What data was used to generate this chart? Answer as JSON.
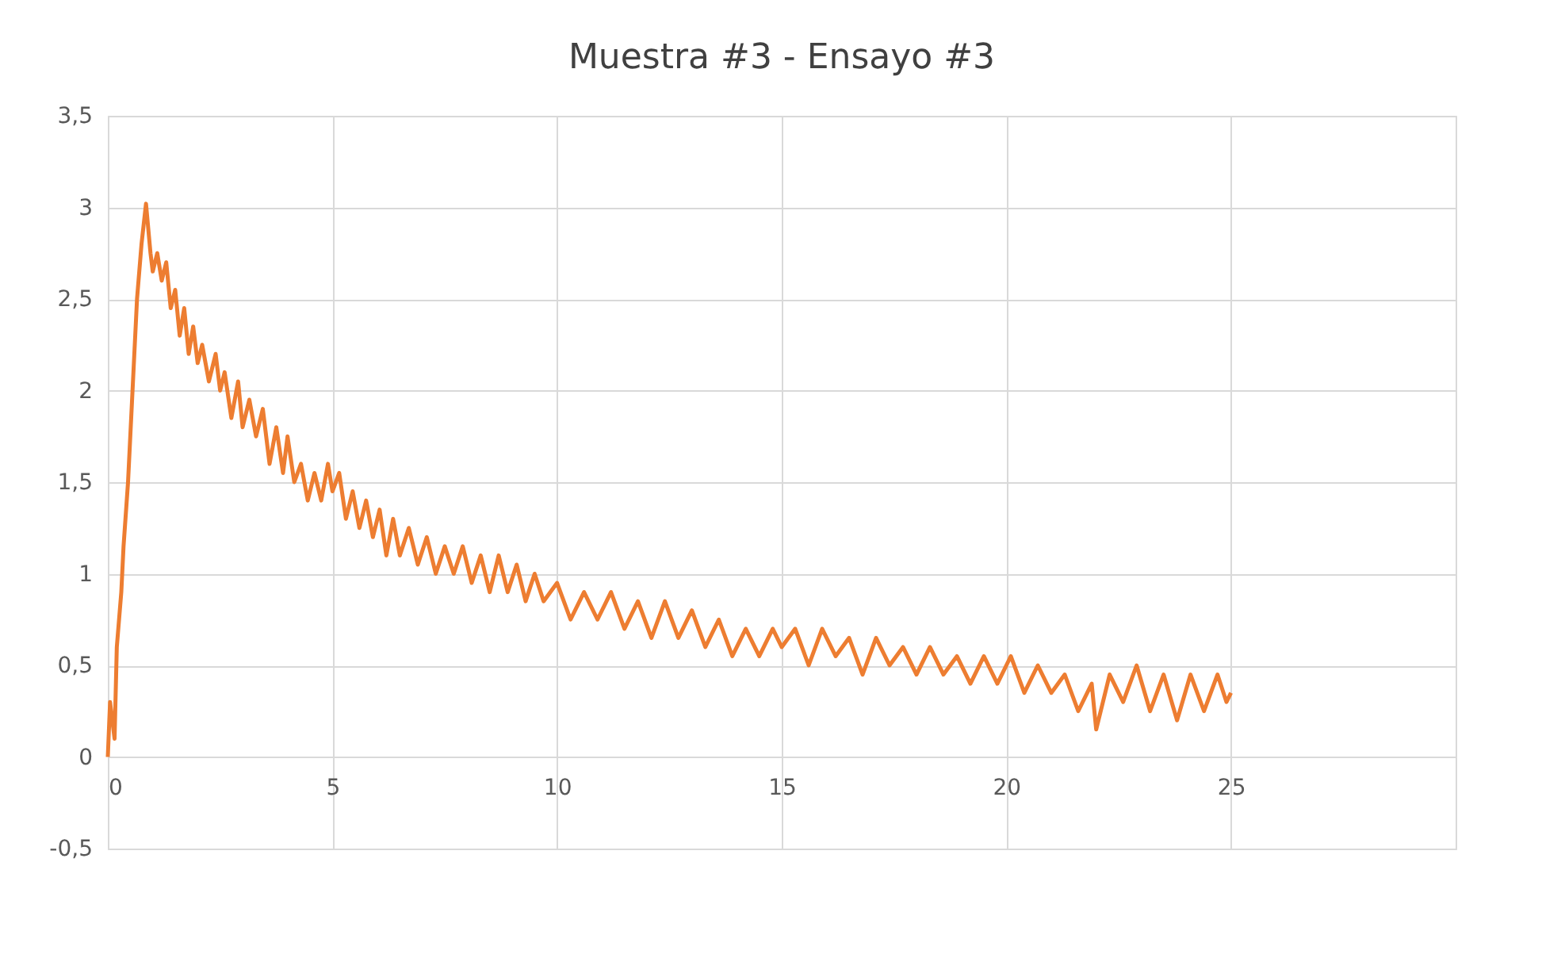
{
  "chart_data": {
    "type": "line",
    "title": "Muestra #3 - Ensayo #3",
    "x": [
      0,
      0.05,
      0.15,
      0.2,
      0.3,
      0.35,
      0.45,
      0.55,
      0.65,
      0.75,
      0.85,
      0.95,
      1.0,
      1.1,
      1.2,
      1.3,
      1.4,
      1.5,
      1.6,
      1.7,
      1.8,
      1.9,
      2.0,
      2.1,
      2.25,
      2.4,
      2.5,
      2.6,
      2.75,
      2.9,
      3.0,
      3.15,
      3.3,
      3.45,
      3.6,
      3.75,
      3.9,
      4.0,
      4.15,
      4.3,
      4.45,
      4.6,
      4.75,
      4.9,
      5.0,
      5.15,
      5.3,
      5.45,
      5.6,
      5.75,
      5.9,
      6.05,
      6.2,
      6.35,
      6.5,
      6.7,
      6.9,
      7.1,
      7.3,
      7.5,
      7.7,
      7.9,
      8.1,
      8.3,
      8.5,
      8.7,
      8.9,
      9.1,
      9.3,
      9.5,
      9.7,
      10.0,
      10.3,
      10.6,
      10.9,
      11.2,
      11.5,
      11.8,
      12.1,
      12.4,
      12.7,
      13.0,
      13.3,
      13.6,
      13.9,
      14.2,
      14.5,
      14.8,
      15.0,
      15.3,
      15.6,
      15.9,
      16.2,
      16.5,
      16.8,
      17.1,
      17.4,
      17.7,
      18.0,
      18.3,
      18.6,
      18.9,
      19.2,
      19.5,
      19.8,
      20.1,
      20.4,
      20.7,
      21.0,
      21.3,
      21.6,
      21.9,
      22.0,
      22.3,
      22.6,
      22.9,
      23.2,
      23.5,
      23.8,
      24.1,
      24.4,
      24.7,
      24.9,
      25.0
    ],
    "series": [
      {
        "color": "#ed7d31",
        "values": [
          0,
          0.3,
          0.1,
          0.6,
          0.9,
          1.15,
          1.5,
          2.0,
          2.5,
          2.8,
          3.02,
          2.75,
          2.65,
          2.75,
          2.6,
          2.7,
          2.45,
          2.55,
          2.3,
          2.45,
          2.2,
          2.35,
          2.15,
          2.25,
          2.05,
          2.2,
          2.0,
          2.1,
          1.85,
          2.05,
          1.8,
          1.95,
          1.75,
          1.9,
          1.6,
          1.8,
          1.55,
          1.75,
          1.5,
          1.6,
          1.4,
          1.55,
          1.4,
          1.6,
          1.45,
          1.55,
          1.3,
          1.45,
          1.25,
          1.4,
          1.2,
          1.35,
          1.1,
          1.3,
          1.1,
          1.25,
          1.05,
          1.2,
          1.0,
          1.15,
          1.0,
          1.15,
          0.95,
          1.1,
          0.9,
          1.1,
          0.9,
          1.05,
          0.85,
          1.0,
          0.85,
          0.95,
          0.75,
          0.9,
          0.75,
          0.9,
          0.7,
          0.85,
          0.65,
          0.85,
          0.65,
          0.8,
          0.6,
          0.75,
          0.55,
          0.7,
          0.55,
          0.7,
          0.6,
          0.7,
          0.5,
          0.7,
          0.55,
          0.65,
          0.45,
          0.65,
          0.5,
          0.6,
          0.45,
          0.6,
          0.45,
          0.55,
          0.4,
          0.55,
          0.4,
          0.55,
          0.35,
          0.5,
          0.35,
          0.45,
          0.25,
          0.4,
          0.15,
          0.45,
          0.3,
          0.5,
          0.25,
          0.45,
          0.2,
          0.45,
          0.25,
          0.45,
          0.3,
          0.35
        ]
      }
    ],
    "xlim": [
      0,
      30
    ],
    "xticks": [
      0,
      5,
      10,
      15,
      20,
      25,
      {
        "value": 30,
        "label": null
      }
    ],
    "ylim": [
      -0.5,
      3.5
    ],
    "yticks": [
      {
        "value": -0.5,
        "label": "-0,5"
      },
      0,
      {
        "value": 0.5,
        "label": "0,5"
      },
      1,
      {
        "value": 1.5,
        "label": "1,5"
      },
      2,
      {
        "value": 2.5,
        "label": "2,5"
      },
      3,
      {
        "value": 3.5,
        "label": "3,5"
      }
    ],
    "grid": true,
    "marker": "none",
    "line_style": "solid"
  }
}
